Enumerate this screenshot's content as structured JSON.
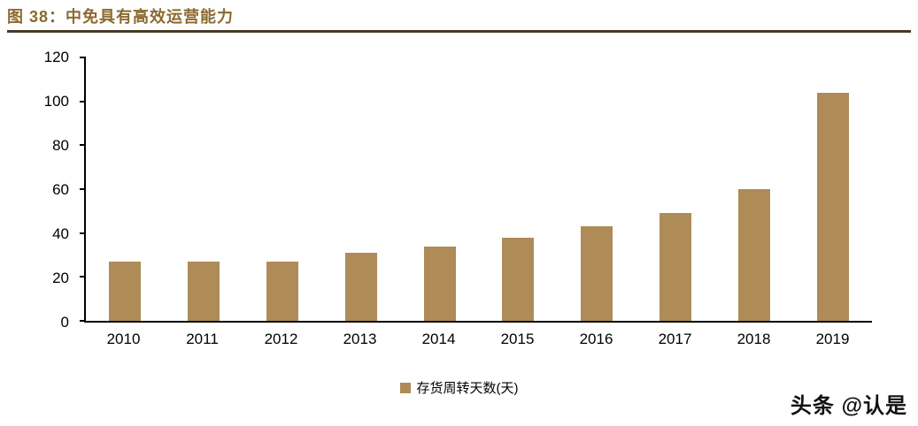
{
  "header": {
    "title": "图 38：中免具有高效运营能力"
  },
  "chart_data": {
    "type": "bar",
    "title": "图 38：中免具有高效运营能力",
    "categories": [
      "2010",
      "2011",
      "2012",
      "2013",
      "2014",
      "2015",
      "2016",
      "2017",
      "2018",
      "2019"
    ],
    "values": [
      27,
      27,
      27,
      31,
      34,
      38,
      43,
      49,
      60,
      104
    ],
    "xlabel": "",
    "ylabel": "",
    "ylim": [
      0,
      120
    ],
    "yticks": [
      0,
      20,
      40,
      60,
      80,
      100,
      120
    ],
    "legend": "存货周转天数(天)",
    "legend_position": "bottom",
    "grid": false,
    "bar_color": "#AE8B57"
  },
  "watermark": {
    "text": "头条 @认是"
  },
  "colors": {
    "title": "#8C6A2E",
    "divider": "#473A26",
    "bar": "#AE8B57",
    "axis": "#000000"
  }
}
